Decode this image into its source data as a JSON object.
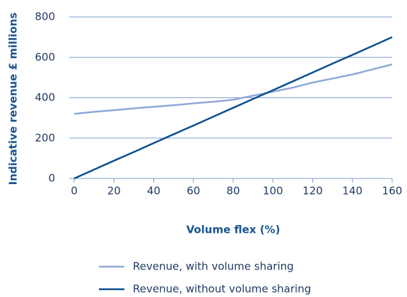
{
  "chart_data": {
    "type": "line",
    "xlabel": "Volume flex (%)",
    "ylabel": "Indicative revenue £ millions",
    "x": [
      0,
      10,
      20,
      30,
      40,
      50,
      60,
      70,
      80,
      90,
      100,
      110,
      120,
      130,
      140,
      150,
      160
    ],
    "series": [
      {
        "name": "Revenue, with volume sharing",
        "color": "#8fa8d6",
        "values": [
          320,
          330,
          338,
          347,
          355,
          363,
          372,
          380,
          390,
          410,
          430,
          450,
          475,
          495,
          515,
          540,
          565
        ]
      },
      {
        "name": "Revenue, without volume sharing",
        "color": "#0b4f8e",
        "values": [
          0,
          44,
          88,
          131,
          175,
          219,
          262,
          306,
          350,
          394,
          437,
          481,
          525,
          569,
          612,
          656,
          700
        ]
      }
    ],
    "xlim": [
      0,
      160
    ],
    "xticks": [
      0,
      20,
      40,
      60,
      80,
      100,
      120,
      140,
      160
    ],
    "ylim": [
      0,
      800
    ],
    "yticks": [
      0,
      200,
      400,
      600,
      800
    ],
    "grid": true
  }
}
